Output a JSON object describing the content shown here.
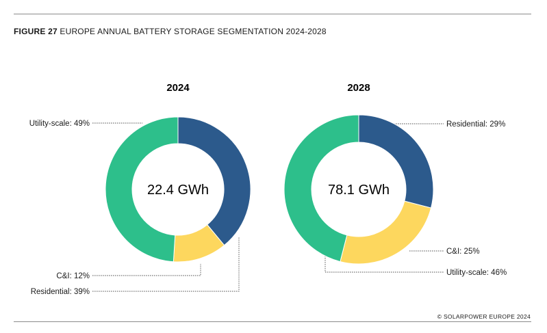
{
  "figure": {
    "number": "FIGURE 27",
    "title": "EUROPE ANNUAL BATTERY STORAGE SEGMENTATION 2024-2028",
    "credit": "© SOLARPOWER EUROPE 2024"
  },
  "colors": {
    "residential": "#2c5a8c",
    "ci": "#fdd75e",
    "utility": "#2dbf8b"
  },
  "chart_data": [
    {
      "type": "pie",
      "variant": "donut",
      "title": "2024",
      "center_label": "22.4 GWh",
      "total_gwh": 22.4,
      "slices": [
        {
          "name": "Residential",
          "value": 39,
          "label": "Residential: 39%",
          "color_key": "residential"
        },
        {
          "name": "C&I",
          "value": 12,
          "label": "C&I: 12%",
          "color_key": "ci"
        },
        {
          "name": "Utility-scale",
          "value": 49,
          "label": "Utility-scale: 49%",
          "color_key": "utility"
        }
      ]
    },
    {
      "type": "pie",
      "variant": "donut",
      "title": "2028",
      "center_label": "78.1 GWh",
      "total_gwh": 78.1,
      "slices": [
        {
          "name": "Residential",
          "value": 29,
          "label": "Residential: 29%",
          "color_key": "residential"
        },
        {
          "name": "C&I",
          "value": 25,
          "label": "C&I: 25%",
          "color_key": "ci"
        },
        {
          "name": "Utility-scale",
          "value": 46,
          "label": "Utility-scale: 46%",
          "color_key": "utility"
        }
      ]
    }
  ]
}
